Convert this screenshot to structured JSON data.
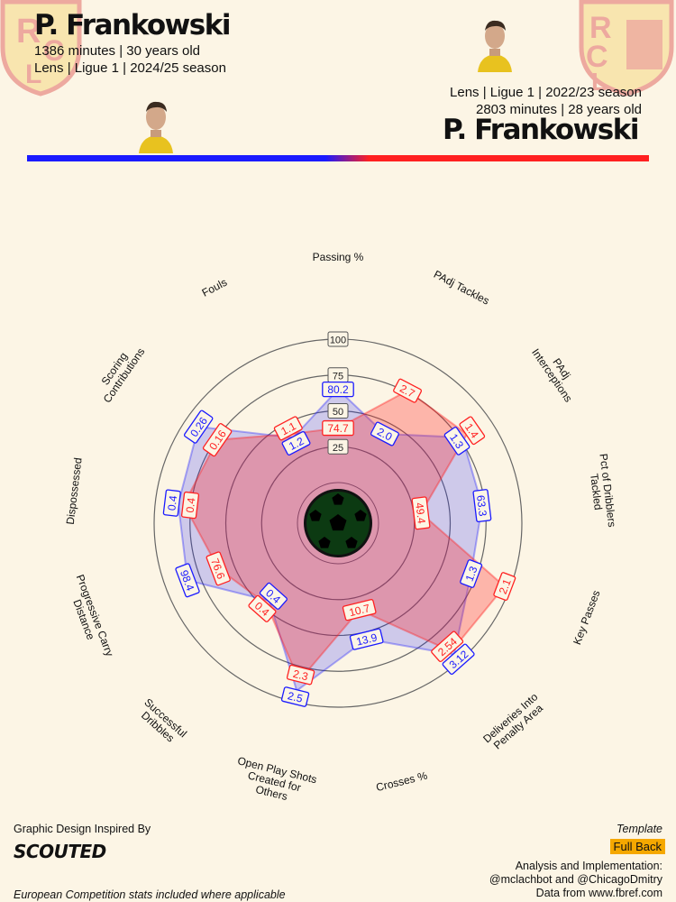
{
  "player_a": {
    "name": "P. Frankowski",
    "minutes_age": "1386 minutes | 30 years old",
    "club_league_season": "Lens | Ligue 1 | 2024/25 season",
    "color": "#1a1aff"
  },
  "player_b": {
    "name": "P. Frankowski",
    "minutes_age": "2803 minutes | 28 years old",
    "club_league_season": "Lens | Ligue 1 | 2022/23 season",
    "color": "#ff2020"
  },
  "crest_letters": "RCL",
  "footer": {
    "inspired_by": "Graphic Design Inspired By",
    "scouted_logo": "SCOUTED",
    "template_label": "Template",
    "template_value": "Full Back",
    "analysis": "Analysis and Implementation:",
    "authors": "@mclachbot and @ChicagoDmitry",
    "data_source": "Data from www.fbref.com",
    "note": "European Competition stats included where applicable"
  },
  "chart_data": {
    "type": "radar",
    "scale_labels": [
      "25",
      "50",
      "75",
      "100"
    ],
    "scale_max": 100,
    "metrics": [
      {
        "label": "Passing %",
        "a": 80.2,
        "b": 74.7,
        "a_pct": 65,
        "b_pct": 38
      },
      {
        "label": "PAdj Tackles",
        "a": "2.0",
        "b": "2.7",
        "a_pct": 42,
        "b_pct": 76
      },
      {
        "label": "PAdj Interceptions",
        "a": "1.3",
        "b": "1.4",
        "a_pct": 77,
        "b_pct": 81
      },
      {
        "label": "Pct of Dribblers Tackled",
        "a": "63.3",
        "b": "49.4",
        "a_pct": 73,
        "b_pct": 30
      },
      {
        "label": "Key Passes",
        "a": "1.3",
        "b": "2.1",
        "a_pct": 71,
        "b_pct": 96
      },
      {
        "label": "Deliveries Into Penalty Area",
        "a": "3.12",
        "b": "2.54",
        "a_pct": 94,
        "b_pct": 91
      },
      {
        "label": "Crosses %",
        "a": "13.9",
        "b": "10.7",
        "a_pct": 55,
        "b_pct": 34
      },
      {
        "label": "Open Play Shots Created for Others",
        "a": "2.5",
        "b": "2.3",
        "a_pct": 92,
        "b_pct": 85
      },
      {
        "label": "Successful Dribbles",
        "a": "0.4",
        "b": "0.4",
        "a_pct": 44,
        "b_pct": 47
      },
      {
        "label": "Progressive Carry Distance",
        "a": "98.4",
        "b": "76.6",
        "a_pct": 84,
        "b_pct": 61
      },
      {
        "label": "Dispossessed",
        "a": "0.4",
        "b": "0.4",
        "a_pct": 84,
        "b_pct": 80
      },
      {
        "label": "Scoring Contributions",
        "a": "0.26",
        "b": "0.16",
        "a_pct": 90,
        "b_pct": 74
      },
      {
        "label": "Fouls",
        "a": "1.2",
        "b": "1.1",
        "a_pct": 39,
        "b_pct": 42
      }
    ]
  }
}
